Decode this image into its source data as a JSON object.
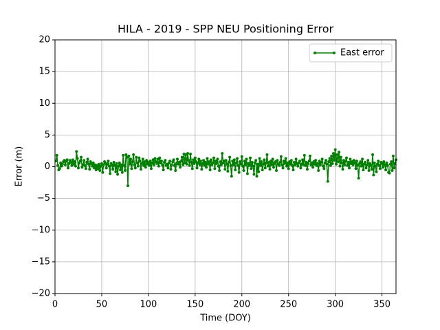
{
  "chart_data": {
    "type": "line",
    "title": "HILA - 2019 - SPP NEU Positioning Error",
    "x_label": "Time (DOY)",
    "y_label": "Error (m)",
    "xlim": [
      0,
      365
    ],
    "ylim": [
      -20,
      20
    ],
    "xticks": [
      0,
      50,
      100,
      150,
      200,
      250,
      300,
      350
    ],
    "yticks": [
      {
        "value": -20,
        "label": "−20"
      },
      {
        "value": -15,
        "label": "−15"
      },
      {
        "value": -10,
        "label": "−10"
      },
      {
        "value": -5,
        "label": "−5"
      },
      0,
      5,
      10,
      15,
      20
    ],
    "grid": true,
    "legend": "upper right",
    "x": [
      1,
      2,
      3,
      4,
      5,
      6,
      7,
      8,
      9,
      10,
      11,
      12,
      13,
      14,
      15,
      16,
      17,
      18,
      19,
      20,
      21,
      22,
      23,
      24,
      25,
      26,
      27,
      28,
      29,
      30,
      31,
      32,
      33,
      34,
      35,
      36,
      37,
      38,
      39,
      40,
      41,
      42,
      43,
      44,
      45,
      46,
      47,
      48,
      49,
      50,
      51,
      52,
      53,
      54,
      55,
      56,
      57,
      58,
      59,
      60,
      61,
      62,
      63,
      64,
      65,
      66,
      67,
      68,
      69,
      70,
      71,
      72,
      73,
      74,
      75,
      76,
      77,
      78,
      79,
      80,
      81,
      82,
      83,
      84,
      85,
      86,
      87,
      88,
      89,
      90,
      91,
      92,
      93,
      94,
      95,
      96,
      97,
      98,
      99,
      100,
      101,
      102,
      103,
      104,
      105,
      106,
      107,
      108,
      109,
      110,
      111,
      112,
      113,
      114,
      115,
      116,
      117,
      118,
      119,
      120,
      121,
      122,
      123,
      124,
      125,
      126,
      127,
      128,
      129,
      130,
      131,
      132,
      133,
      134,
      135,
      136,
      137,
      138,
      139,
      140,
      141,
      142,
      143,
      144,
      145,
      146,
      147,
      148,
      149,
      150,
      151,
      152,
      153,
      154,
      155,
      156,
      157,
      158,
      159,
      160,
      161,
      162,
      163,
      164,
      165,
      166,
      167,
      168,
      169,
      170,
      171,
      172,
      173,
      174,
      175,
      176,
      177,
      178,
      179,
      180,
      181,
      182,
      183,
      184,
      185,
      186,
      187,
      188,
      189,
      190,
      191,
      192,
      193,
      194,
      195,
      196,
      197,
      198,
      199,
      200,
      201,
      202,
      203,
      204,
      205,
      206,
      207,
      208,
      209,
      210,
      211,
      212,
      213,
      214,
      215,
      216,
      217,
      218,
      219,
      220,
      221,
      222,
      223,
      224,
      225,
      226,
      227,
      228,
      229,
      230,
      231,
      232,
      233,
      234,
      235,
      236,
      237,
      238,
      239,
      240,
      241,
      242,
      243,
      244,
      245,
      246,
      247,
      248,
      249,
      250,
      251,
      252,
      253,
      254,
      255,
      256,
      257,
      258,
      259,
      260,
      261,
      262,
      263,
      264,
      265,
      266,
      267,
      268,
      269,
      270,
      271,
      272,
      273,
      274,
      275,
      276,
      277,
      278,
      279,
      280,
      281,
      282,
      283,
      284,
      285,
      286,
      287,
      288,
      289,
      290,
      291,
      292,
      293,
      294,
      295,
      296,
      297,
      298,
      299,
      300,
      301,
      302,
      303,
      304,
      305,
      306,
      307,
      308,
      309,
      310,
      311,
      312,
      313,
      314,
      315,
      316,
      317,
      318,
      319,
      320,
      321,
      322,
      323,
      324,
      325,
      326,
      327,
      328,
      329,
      330,
      331,
      332,
      333,
      334,
      335,
      336,
      337,
      338,
      339,
      340,
      341,
      342,
      343,
      344,
      345,
      346,
      347,
      348,
      349,
      350,
      351,
      352,
      353,
      354,
      355,
      356,
      357,
      358,
      359,
      360,
      361,
      362,
      363,
      364,
      365
    ],
    "series": [
      {
        "name": "East error",
        "color": "#008000",
        "values": [
          0.9,
          1.8,
          0.2,
          -0.5,
          -0.3,
          0.6,
          0.1,
          0.4,
          0.8,
          1.0,
          0.3,
          0.9,
          1.1,
          -0.2,
          0.5,
          1.0,
          0.7,
          0.2,
          1.1,
          0.4,
          0.8,
          0.1,
          2.4,
          1.3,
          -0.2,
          0.6,
          0.9,
          1.5,
          -0.1,
          0.3,
          1.0,
          0.2,
          -0.3,
          0.7,
          1.2,
          0.4,
          -0.4,
          0.8,
          0.5,
          0.1,
          0.6,
          -0.2,
          0.3,
          -0.5,
          0.2,
          -0.3,
          0.4,
          -0.6,
          0.1,
          0.5,
          -0.9,
          0.3,
          0.8,
          0.6,
          -0.2,
          0.4,
          0.9,
          0.1,
          -1.1,
          0.5,
          0.3,
          -0.4,
          0.7,
          0.2,
          -0.8,
          0.5,
          -1.2,
          0.1,
          0.6,
          -0.5,
          0.3,
          -0.9,
          1.8,
          0.2,
          -0.6,
          1.9,
          1.5,
          -3.0,
          1.7,
          0.4,
          1.2,
          -0.3,
          0.8,
          1.9,
          0.3,
          -0.2,
          1.5,
          0.6,
          0.1,
          1.4,
          0.9,
          -0.4,
          0.5,
          1.2,
          0.2,
          0.8,
          -0.1,
          1.0,
          0.4,
          0.7,
          0.2,
          0.9,
          -0.3,
          0.6,
          1.1,
          0.3,
          1.3,
          0.8,
          0.5,
          1.2,
          0.1,
          1.4,
          0.6,
          0.9,
          0.3,
          -0.5,
          0.7,
          1.0,
          0.2,
          0.4,
          -0.2,
          0.6,
          0.9,
          -0.4,
          0.3,
          0.8,
          1.1,
          0.2,
          -0.6,
          0.5,
          1.2,
          0.4,
          0.7,
          -0.1,
          0.9,
          1.5,
          0.3,
          2.0,
          0.6,
          1.9,
          0.4,
          2.1,
          1.0,
          0.2,
          2.0,
          0.7,
          -0.3,
          1.1,
          0.5,
          1.4,
          0.8,
          -0.2,
          0.6,
          1.2,
          0.3,
          0.9,
          -0.4,
          0.5,
          1.0,
          0.2,
          0.7,
          -0.1,
          1.3,
          0.4,
          0.8,
          -0.5,
          1.1,
          0.3,
          0.6,
          1.4,
          -0.3,
          0.9,
          0.5,
          1.2,
          0.1,
          -0.6,
          0.8,
          0.3,
          2.1,
          0.6,
          0.9,
          -0.4,
          1.0,
          0.4,
          -0.7,
          0.7,
          1.5,
          0.2,
          -1.5,
          0.9,
          0.3,
          1.1,
          -0.5,
          0.6,
          1.3,
          0.2,
          -0.9,
          0.8,
          0.4,
          1.6,
          0.1,
          -0.6,
          0.9,
          0.3,
          1.2,
          -1.1,
          0.5,
          0.2,
          1.4,
          -0.3,
          0.7,
          0.1,
          -1.2,
          0.6,
          1.0,
          -1.5,
          0.4,
          -0.8,
          1.3,
          0.2,
          0.8,
          -0.5,
          0.4,
          1.1,
          -0.2,
          0.6,
          1.9,
          0.1,
          0.7,
          -0.4,
          0.9,
          0.3,
          1.2,
          -0.1,
          0.5,
          0.8,
          -0.6,
          1.0,
          0.4,
          0.2,
          0.7,
          1.6,
          0.3,
          -0.2,
          0.9,
          0.5,
          1.3,
          0.1,
          0.6,
          -0.3,
          0.8,
          0.4,
          1.0,
          0.2,
          -0.5,
          0.7,
          0.3,
          1.2,
          0.5,
          0.1,
          0.6,
          0.9,
          -0.2,
          0.4,
          1.1,
          0.3,
          1.8,
          0.2,
          0.7,
          -0.4,
          0.5,
          0.9,
          1.7,
          0.3,
          0.6,
          -0.1,
          0.8,
          0.4,
          1.0,
          0.2,
          0.5,
          -0.6,
          0.9,
          0.3,
          0.7,
          1.2,
          0.1,
          -0.3,
          0.6,
          1.0,
          0.4,
          -2.3,
          0.8,
          1.3,
          0.2,
          1.7,
          0.5,
          2.1,
          1.0,
          2.7,
          0.4,
          1.9,
          0.8,
          2.3,
          0.1,
          1.5,
          0.6,
          -0.4,
          1.0,
          0.3,
          0.9,
          1.4,
          0.2,
          0.7,
          -0.2,
          1.2,
          0.5,
          0.8,
          0.3,
          1.0,
          0.6,
          -0.3,
          0.9,
          0.2,
          -1.8,
          0.5,
          0.8,
          0.1,
          1.2,
          -0.5,
          0.4,
          0.7,
          -0.2,
          0.3,
          1.0,
          -0.6,
          0.5,
          0.2,
          -0.4,
          1.9,
          -1.3,
          0.6,
          0.1,
          -0.8,
          0.4,
          0.9,
          0.2,
          -0.3,
          0.7,
          0.5,
          -0.1,
          0.8,
          0.3,
          -0.5,
          0.6,
          0.2,
          -0.9,
          -1.0,
          0.4,
          0.8,
          -0.6,
          1.7,
          -0.2,
          0.5,
          1.1
        ]
      }
    ]
  }
}
